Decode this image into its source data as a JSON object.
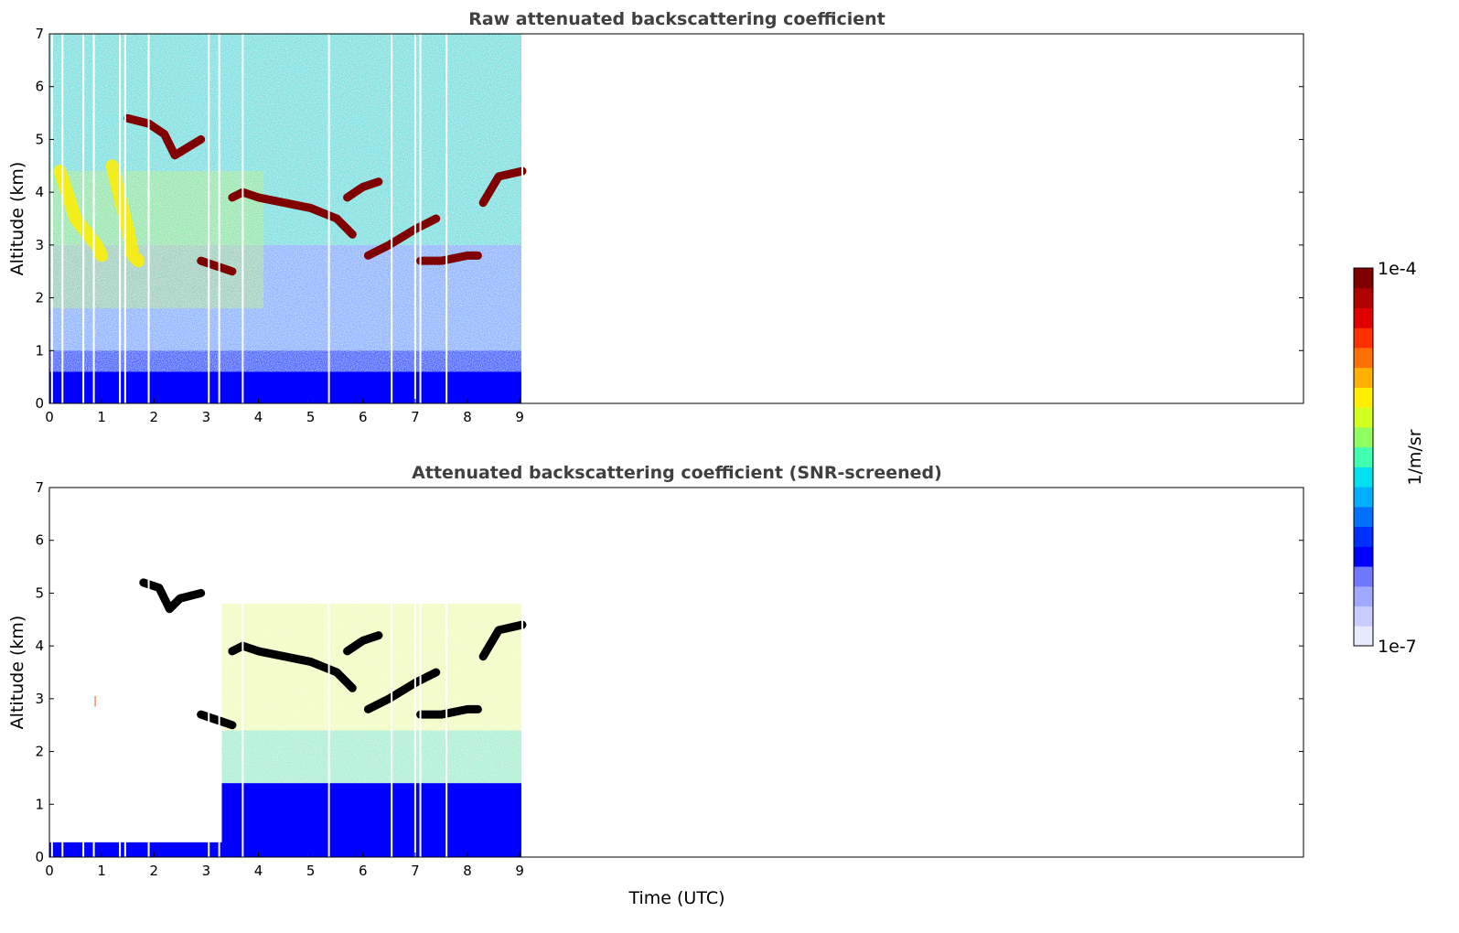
{
  "chart_data": [
    {
      "type": "heatmap",
      "title": "Raw attenuated backscattering coefficient",
      "xlabel": "",
      "ylabel": "Altitude (km)",
      "xlim": [
        0,
        24
      ],
      "ylim": [
        0,
        7
      ],
      "x_ticks": [
        "0",
        "1",
        "2",
        "3",
        "4",
        "5",
        "6",
        "7",
        "8",
        "9"
      ],
      "y_ticks": [
        "0",
        "1",
        "2",
        "3",
        "4",
        "5",
        "6",
        "7"
      ],
      "data_extent_x": [
        0,
        9.05
      ],
      "colormap": "jet",
      "color_scale": "log",
      "features": [
        {
          "kind": "cloud_layer",
          "level": 0.0001,
          "t": [
            1.5,
            1.9,
            2.2,
            2.4,
            2.9
          ],
          "alt": [
            5.4,
            5.3,
            5.1,
            4.7,
            5.0
          ]
        },
        {
          "kind": "cloud_layer",
          "level": 0.0001,
          "t": [
            3.5,
            3.7,
            4.0,
            4.5,
            5.0,
            5.5,
            5.8
          ],
          "alt": [
            3.9,
            4.0,
            3.9,
            3.8,
            3.7,
            3.5,
            3.2
          ]
        },
        {
          "kind": "cloud_layer",
          "level": 0.0001,
          "t": [
            5.7,
            6.0,
            6.3
          ],
          "alt": [
            3.9,
            4.1,
            4.2
          ]
        },
        {
          "kind": "cloud_layer",
          "level": 0.0001,
          "t": [
            6.1,
            6.5,
            7.0,
            7.4
          ],
          "alt": [
            2.8,
            3.0,
            3.3,
            3.5
          ]
        },
        {
          "kind": "cloud_layer",
          "level": 0.0001,
          "t": [
            7.1,
            7.5,
            8.0,
            8.2
          ],
          "alt": [
            2.7,
            2.7,
            2.8,
            2.8
          ]
        },
        {
          "kind": "cloud_layer",
          "level": 0.0001,
          "t": [
            8.3,
            8.6,
            9.05
          ],
          "alt": [
            3.8,
            4.3,
            4.4
          ]
        },
        {
          "kind": "cloud_layer",
          "level": 0.0001,
          "t": [
            2.9,
            3.2,
            3.5
          ],
          "alt": [
            2.7,
            2.6,
            2.5
          ]
        },
        {
          "kind": "fallstreak",
          "level": 1e-05,
          "t": [
            0.2,
            0.5,
            0.9,
            1.0
          ],
          "alt": [
            4.4,
            3.5,
            3.0,
            2.8
          ]
        },
        {
          "kind": "fallstreak",
          "level": 1e-05,
          "t": [
            1.2,
            1.5,
            1.6,
            1.7
          ],
          "alt": [
            4.5,
            3.3,
            2.8,
            2.7
          ]
        },
        {
          "kind": "boundary_layer",
          "level": 1e-06,
          "alt_top": 0.6
        }
      ],
      "gaps_x": [
        0.05,
        0.25,
        0.65,
        0.85,
        1.35,
        1.45,
        1.9,
        3.05,
        3.25,
        3.7,
        5.35,
        6.55,
        7.0,
        7.1,
        7.6,
        9.05
      ]
    },
    {
      "type": "heatmap",
      "title": "Attenuated backscattering coefficient (SNR-screened)",
      "xlabel": "Time (UTC)",
      "ylabel": "Altitude (km)",
      "xlim": [
        0,
        24
      ],
      "ylim": [
        0,
        7
      ],
      "x_ticks": [
        "0",
        "1",
        "2",
        "3",
        "4",
        "5",
        "6",
        "7",
        "8",
        "9"
      ],
      "y_ticks": [
        "0",
        "1",
        "2",
        "3",
        "4",
        "5",
        "6",
        "7"
      ],
      "data_extent_x": [
        0,
        9.05
      ],
      "colormap": "jet",
      "color_scale": "log",
      "features": [
        {
          "kind": "saturated_layer",
          "color": "#000000",
          "t": [
            1.8,
            2.1,
            2.3,
            2.5,
            2.9
          ],
          "alt": [
            5.2,
            5.1,
            4.7,
            4.9,
            5.0
          ]
        },
        {
          "kind": "saturated_layer",
          "color": "#000000",
          "t": [
            3.5,
            3.7,
            4.0,
            4.5,
            5.0,
            5.5,
            5.8
          ],
          "alt": [
            3.9,
            4.0,
            3.9,
            3.8,
            3.7,
            3.5,
            3.2
          ]
        },
        {
          "kind": "saturated_layer",
          "color": "#000000",
          "t": [
            5.7,
            6.0,
            6.3
          ],
          "alt": [
            3.9,
            4.1,
            4.2
          ]
        },
        {
          "kind": "saturated_layer",
          "color": "#000000",
          "t": [
            6.1,
            6.5,
            7.0,
            7.4
          ],
          "alt": [
            2.8,
            3.0,
            3.3,
            3.5
          ]
        },
        {
          "kind": "saturated_layer",
          "color": "#000000",
          "t": [
            7.1,
            7.5,
            8.0,
            8.2
          ],
          "alt": [
            2.7,
            2.7,
            2.8,
            2.8
          ]
        },
        {
          "kind": "saturated_layer",
          "color": "#000000",
          "t": [
            8.3,
            8.6,
            9.05
          ],
          "alt": [
            3.8,
            4.3,
            4.4
          ]
        },
        {
          "kind": "saturated_layer",
          "color": "#000000",
          "t": [
            2.9,
            3.2,
            3.5
          ],
          "alt": [
            2.7,
            2.6,
            2.5
          ]
        },
        {
          "kind": "boundary_layer",
          "level": 1e-06,
          "t_range": [
            0,
            3.3
          ],
          "alt_top": 0.28
        },
        {
          "kind": "boundary_layer",
          "level": 1e-06,
          "t_range": [
            3.3,
            9.05
          ],
          "alt_top": 1.4
        },
        {
          "kind": "noise_region",
          "level": 3e-06,
          "t_range": [
            3.3,
            9.05
          ],
          "alt": [
            1.4,
            4.8
          ]
        }
      ],
      "gaps_x": [
        0.05,
        0.25,
        0.65,
        0.85,
        1.35,
        1.45,
        1.9,
        3.05,
        3.25,
        3.7,
        5.35,
        6.55,
        7.0,
        7.1,
        7.6,
        9.05
      ]
    }
  ],
  "colorbar": {
    "label": "1/m/sr",
    "min_label": "1e-7",
    "max_label": "1e-4",
    "scale": "log",
    "colors": [
      "#e8ebff",
      "#c8ccff",
      "#a0a8ff",
      "#6f78ff",
      "#0000ff",
      "#0030ff",
      "#0070ff",
      "#00b0ff",
      "#00e0f0",
      "#40ffb0",
      "#90ff60",
      "#d0ff20",
      "#ffee00",
      "#ffb000",
      "#ff7000",
      "#ff3000",
      "#e00000",
      "#b00000",
      "#800000"
    ]
  }
}
